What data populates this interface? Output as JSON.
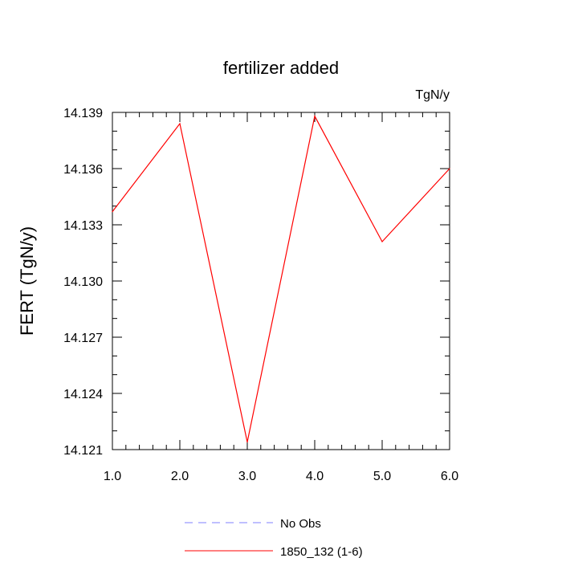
{
  "chart_data": {
    "type": "line",
    "title": "fertilizer added",
    "units_label": "TgN/y",
    "ylabel": "FERT  (TgN/y)",
    "xlabel": "",
    "xlim": [
      1.0,
      6.0
    ],
    "ylim": [
      14.121,
      14.139
    ],
    "x_ticks": [
      "1.0",
      "2.0",
      "3.0",
      "4.0",
      "5.0",
      "6.0"
    ],
    "y_ticks": [
      "14.121",
      "14.124",
      "14.127",
      "14.130",
      "14.133",
      "14.136",
      "14.139"
    ],
    "grid": false,
    "legend_position": "bottom",
    "series": [
      {
        "name": "1850_132 (1-6)",
        "color": "#ff0000",
        "x": [
          1.0,
          2.0,
          3.0,
          4.0,
          5.0,
          6.0
        ],
        "values": [
          14.1337,
          14.1384,
          14.1214,
          14.1388,
          14.1321,
          14.136
        ]
      }
    ],
    "legend": [
      {
        "label": "No Obs",
        "color": "#7f7fff",
        "style": "dashed"
      },
      {
        "label": "1850_132 (1-6)",
        "color": "#ff0000",
        "style": "solid"
      }
    ]
  }
}
